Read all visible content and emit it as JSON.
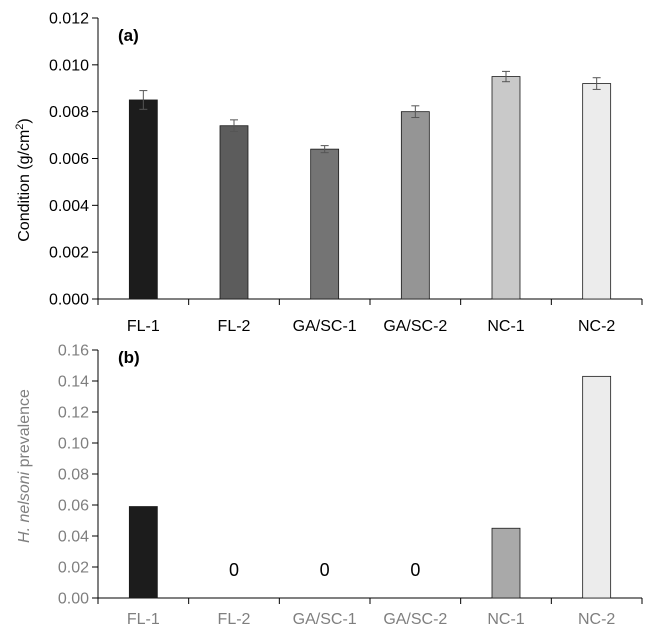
{
  "chart_data": [
    {
      "type": "bar",
      "panel_label": "(a)",
      "ylabel": "Condition (g/cm²)",
      "ylabel_main": "Condition (g/cm",
      "ylabel_sup": "2",
      "ylabel_close": ")",
      "categories": [
        "FL-1",
        "FL-2",
        "GA/SC-1",
        "GA/SC-2",
        "NC-1",
        "NC-2"
      ],
      "values": [
        0.0085,
        0.0074,
        0.0064,
        0.008,
        0.0095,
        0.0092
      ],
      "errors": [
        0.0004,
        0.00025,
        0.00015,
        0.00025,
        0.00022,
        0.00025
      ],
      "colors": [
        "#1c1c1c",
        "#5c5c5c",
        "#747474",
        "#959595",
        "#c9c9c9",
        "#ececec"
      ],
      "ylim": [
        0,
        0.012
      ],
      "yticks": [
        "0.000",
        "0.002",
        "0.004",
        "0.006",
        "0.008",
        "0.010",
        "0.012"
      ],
      "grid": false,
      "legend": "none"
    },
    {
      "type": "bar",
      "panel_label": "(b)",
      "ylabel_italic": "H. nelsoni",
      "ylabel_rest": " prevalence",
      "categories": [
        "FL-1",
        "FL-2",
        "GA/SC-1",
        "GA/SC-2",
        "NC-1",
        "NC-2"
      ],
      "values": [
        0.059,
        0,
        0,
        0,
        0.045,
        0.143
      ],
      "zero_labels": [
        "",
        "0",
        "0",
        "0",
        "",
        ""
      ],
      "colors": [
        "#1c1c1c",
        "#5c5c5c",
        "#747474",
        "#959595",
        "#a9a9a9",
        "#ececec"
      ],
      "ylim": [
        0,
        0.16
      ],
      "yticks": [
        "0.00",
        "0.02",
        "0.04",
        "0.06",
        "0.08",
        "0.10",
        "0.12",
        "0.14",
        "0.16"
      ],
      "grid": false,
      "legend": "none"
    }
  ]
}
